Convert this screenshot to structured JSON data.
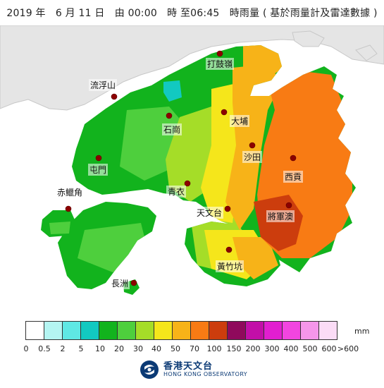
{
  "title": "2019 年　6 月 11 日　由 00:00　時 至06:45　時雨量 ( 基於雨量計及雷達數據 )",
  "places": [
    {
      "id": "tai-mo-shan",
      "name": "打鼓嶺"
    },
    {
      "id": "lau-fau-shan",
      "name": "流浮山"
    },
    {
      "id": "tai-po",
      "name": "大埔"
    },
    {
      "id": "shek-kong",
      "name": "石崗"
    },
    {
      "id": "tuen-mun",
      "name": "屯門"
    },
    {
      "id": "sha-tin",
      "name": "沙田"
    },
    {
      "id": "sai-kung",
      "name": "西貢"
    },
    {
      "id": "tsing-yi",
      "name": "青衣"
    },
    {
      "id": "chek-lap-kok",
      "name": "赤鱲角"
    },
    {
      "id": "tin-man-toi",
      "name": "天文台"
    },
    {
      "id": "tseung-kwan-o",
      "name": "將軍澳"
    },
    {
      "id": "wong-chuk-hang",
      "name": "黃竹坑"
    },
    {
      "id": "cheung-chau",
      "name": "長洲"
    }
  ],
  "legend": {
    "unit": "mm",
    "ticks": [
      "0",
      "0.5",
      "2",
      "5",
      "10",
      "20",
      "30",
      "40",
      "50",
      "70",
      "100",
      "150",
      "200",
      "300",
      "400",
      "500",
      "600",
      ">600"
    ],
    "colors": [
      "#ffffff",
      "#b4f5f2",
      "#5fe8e4",
      "#12c9c1",
      "#12b31d",
      "#4ecf3d",
      "#a5dd28",
      "#f5e61b",
      "#f7b318",
      "#f87b14",
      "#cc3d0d",
      "#8f0a5c",
      "#c20fa8",
      "#e21ed0",
      "#f245e0",
      "#f596ea",
      "#fbdcf6"
    ]
  },
  "logo": {
    "zh": "香港天文台",
    "en": "HONG KONG OBSERVATORY"
  }
}
